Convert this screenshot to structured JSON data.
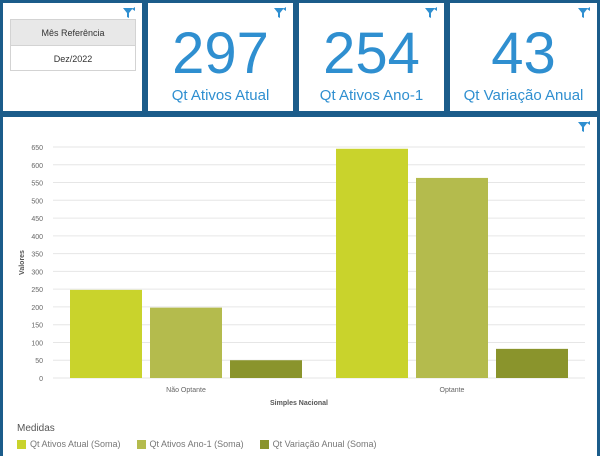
{
  "filter_panel": {
    "header": "Mês Referência",
    "value": "Dez/2022"
  },
  "kpis": [
    {
      "value": "297",
      "label": "Qt Ativos Atual"
    },
    {
      "value": "254",
      "label": "Qt Ativos Ano-1"
    },
    {
      "value": "43",
      "label": "Qt Variação Anual"
    }
  ],
  "icons": {
    "filter": "filter-icon"
  },
  "colors": {
    "kpi_text": "#2f8fd0",
    "frame": "#1b5c8a",
    "series": [
      "#c9d32c",
      "#b4bb4d",
      "#8a942c"
    ]
  },
  "chart_data": {
    "type": "bar",
    "categories": [
      "Não Optante",
      "Optante"
    ],
    "series": [
      {
        "name": "Qt Ativos Atual (Soma)",
        "values": [
          248,
          645
        ]
      },
      {
        "name": "Qt Ativos Ano-1 (Soma)",
        "values": [
          198,
          563
        ]
      },
      {
        "name": "Qt Variação Anual (Soma)",
        "values": [
          50,
          82
        ]
      }
    ],
    "xlabel": "Simples Nacional",
    "ylabel": "Valores",
    "ylim": [
      0,
      650
    ],
    "yticks": [
      0,
      50,
      100,
      150,
      200,
      250,
      300,
      350,
      400,
      450,
      500,
      550,
      600,
      650
    ],
    "grid": true,
    "legend_title": "Medidas",
    "legend_position": "bottom-left"
  }
}
